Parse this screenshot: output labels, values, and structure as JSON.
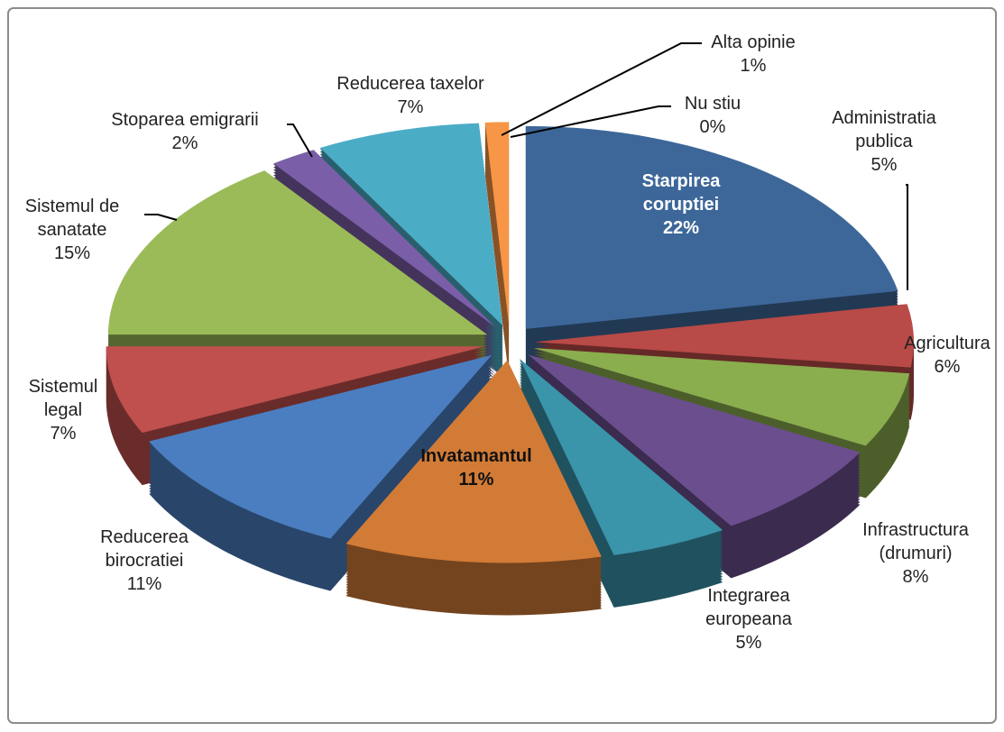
{
  "chart_data": {
    "type": "pie",
    "categories": [
      "Starpirea coruptiei",
      "Administratia publica",
      "Agricultura",
      "Infrastructura (drumuri)",
      "Integrarea europeana",
      "Invatamantul",
      "Reducerea birocratiei",
      "Sistemul legal",
      "Sistemul de sanatate",
      "Stoparea emigrarii",
      "Reducerea taxelor",
      "Alta opinie",
      "Nu stiu"
    ],
    "values": [
      22,
      5,
      6,
      8,
      5,
      11,
      11,
      7,
      15,
      2,
      7,
      1,
      0
    ],
    "value_labels": [
      "22%",
      "5%",
      "6%",
      "8%",
      "5%",
      "11%",
      "11%",
      "7%",
      "15%",
      "2%",
      "7%",
      "1%",
      "0%"
    ],
    "colors": [
      "#3d6799",
      "#b84a47",
      "#8aad4e",
      "#6b4e8e",
      "#3a94aa",
      "#d27b36",
      "#4a7ec0",
      "#c0504d",
      "#9bbb59",
      "#7b5ea8",
      "#4bacc6",
      "#f79646",
      "#4f81bd"
    ]
  }
}
